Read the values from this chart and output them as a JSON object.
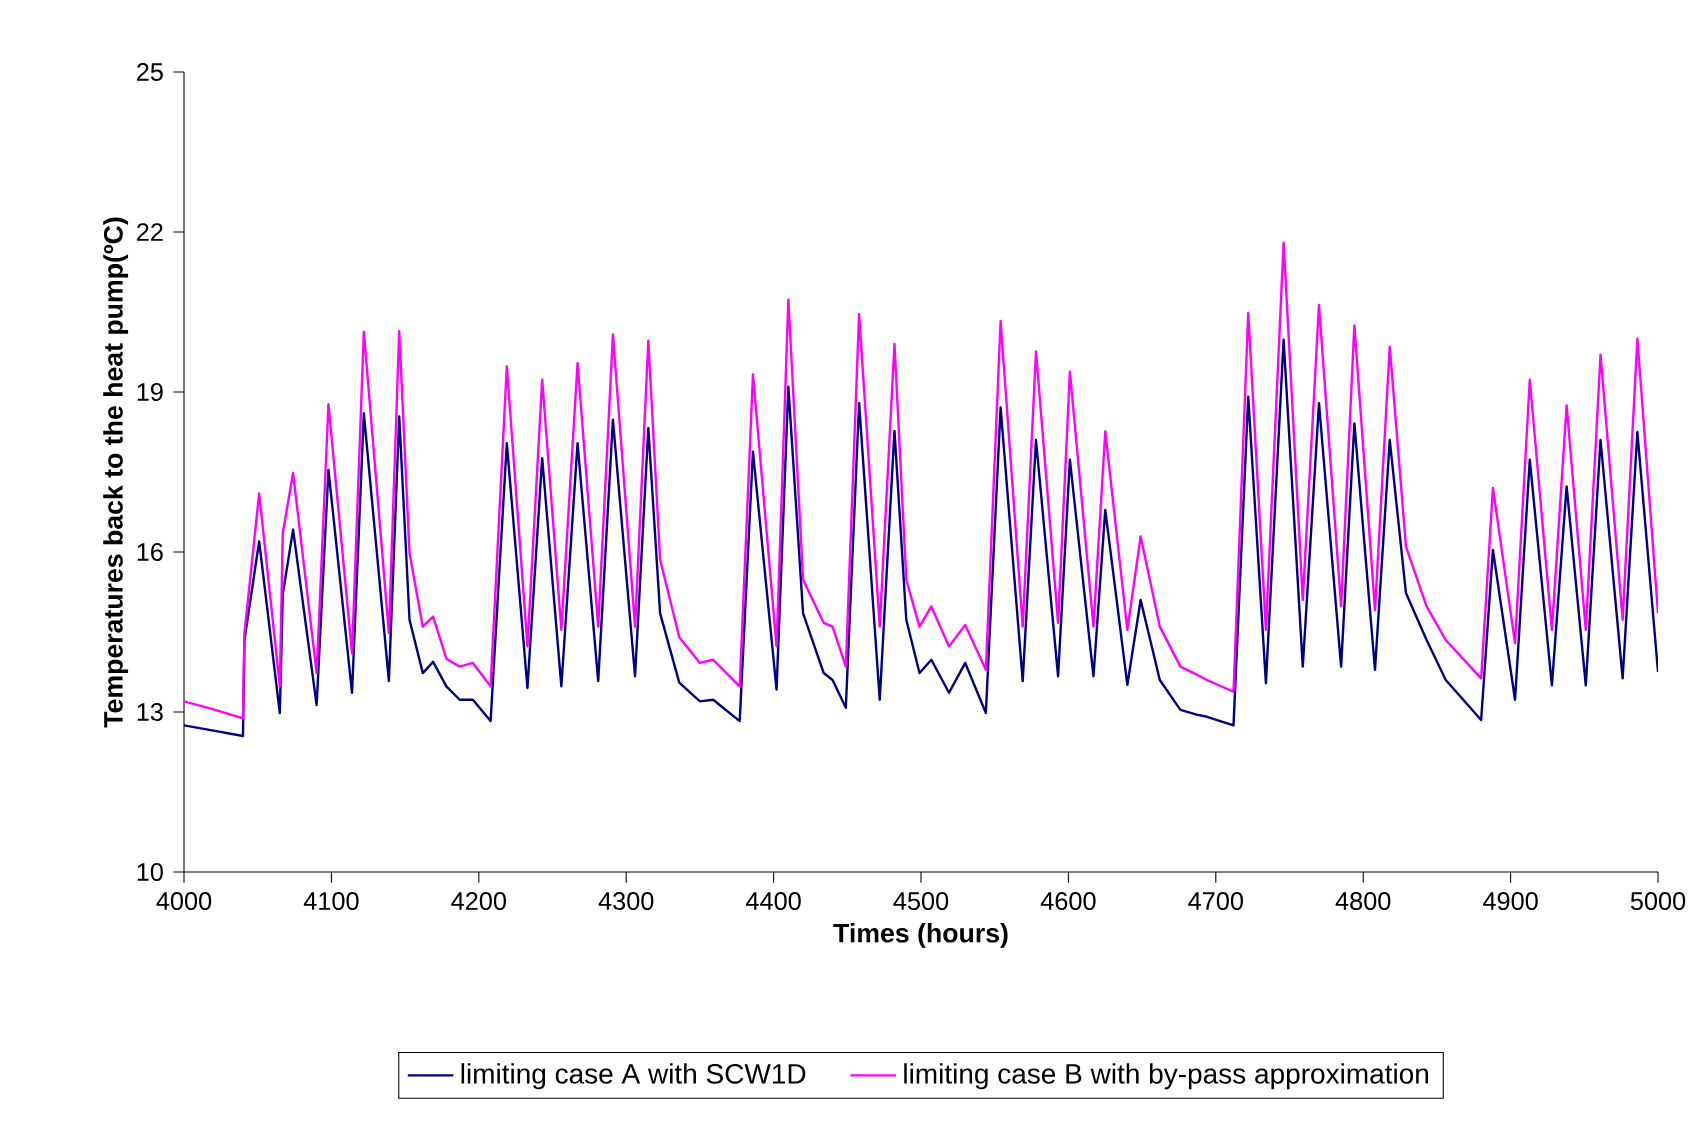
{
  "chart_data": {
    "type": "line",
    "xlabel": "Times (hours)",
    "ylabel": "Temperatures back to the heat pump(ºC)",
    "x": [
      4000,
      4020,
      4040,
      4041,
      4051,
      4065,
      4067,
      4074,
      4090,
      4098,
      4114,
      4122,
      4139,
      4146,
      4153,
      4162,
      4169,
      4178,
      4187,
      4196,
      4208,
      4219,
      4233,
      4243,
      4256,
      4267,
      4281,
      4291,
      4306,
      4315,
      4323,
      4336,
      4350,
      4359,
      4377,
      4386,
      4402,
      4410,
      4420,
      4434,
      4440,
      4449,
      4458,
      4472,
      4482,
      4490,
      4499,
      4507,
      4519,
      4530,
      4544,
      4554,
      4569,
      4578,
      4593,
      4601,
      4617,
      4625,
      4640,
      4649,
      4662,
      4676,
      4687,
      4694,
      4712,
      4722,
      4734,
      4746,
      4759,
      4770,
      4785,
      4794,
      4808,
      4818,
      4829,
      4843,
      4856,
      4880,
      4888,
      4903,
      4913,
      4928,
      4938,
      4951,
      4961,
      4976,
      4986,
      5000
    ],
    "series": [
      {
        "name": "limiting case A with SCW1D",
        "color": "#000080",
        "values": [
          12.75,
          12.65,
          12.55,
          14.35,
          16.2,
          12.98,
          15.2,
          16.42,
          13.13,
          17.54,
          13.36,
          18.6,
          13.58,
          18.54,
          14.73,
          13.73,
          13.94,
          13.48,
          13.23,
          13.23,
          12.83,
          18.04,
          13.45,
          17.76,
          13.48,
          18.04,
          13.58,
          18.48,
          13.67,
          18.32,
          14.85,
          13.55,
          13.2,
          13.23,
          12.83,
          17.88,
          13.42,
          19.1,
          14.85,
          13.73,
          13.6,
          13.08,
          18.79,
          13.23,
          18.27,
          14.73,
          13.73,
          13.98,
          13.36,
          13.92,
          12.98,
          18.71,
          13.58,
          18.1,
          13.67,
          17.73,
          13.67,
          16.79,
          13.51,
          15.1,
          13.6,
          13.04,
          12.95,
          12.91,
          12.75,
          18.91,
          13.54,
          19.98,
          13.85,
          18.79,
          13.85,
          18.41,
          13.79,
          18.1,
          15.23,
          14.35,
          13.6,
          12.85,
          16.04,
          13.23,
          17.73,
          13.5,
          17.23,
          13.5,
          18.1,
          13.63,
          18.25,
          13.75
        ]
      },
      {
        "name": "limiting case B  with by-pass approximation",
        "color": "#ff00ff",
        "values": [
          13.2,
          13.05,
          12.88,
          14.48,
          17.1,
          13.48,
          16.35,
          17.48,
          13.73,
          18.77,
          14.1,
          20.13,
          14.48,
          20.14,
          15.98,
          14.6,
          14.79,
          14.0,
          13.85,
          13.92,
          13.48,
          19.48,
          14.23,
          19.23,
          14.54,
          19.54,
          14.6,
          20.08,
          14.6,
          19.96,
          15.86,
          14.4,
          13.92,
          13.98,
          13.48,
          19.33,
          14.23,
          20.73,
          15.48,
          14.67,
          14.6,
          13.85,
          20.46,
          14.6,
          19.9,
          15.48,
          14.6,
          14.98,
          14.23,
          14.63,
          13.79,
          20.33,
          14.6,
          19.76,
          14.67,
          19.38,
          14.6,
          18.26,
          14.54,
          16.29,
          14.6,
          13.85,
          13.7,
          13.6,
          13.38,
          20.48,
          14.54,
          21.8,
          15.1,
          20.63,
          14.98,
          20.25,
          14.91,
          19.85,
          16.1,
          14.98,
          14.35,
          13.63,
          17.2,
          14.29,
          19.23,
          14.54,
          18.75,
          14.54,
          19.7,
          14.73,
          20.0,
          14.85
        ]
      }
    ],
    "xlim": [
      4000,
      5000
    ],
    "xticks": [
      4000,
      4100,
      4200,
      4300,
      4400,
      4500,
      4600,
      4700,
      4800,
      4900,
      5000
    ],
    "ylim": [
      10,
      25
    ],
    "yticks": [
      10,
      13,
      16,
      19,
      22,
      25
    ],
    "legend": "bottom",
    "line_style": "solid",
    "marker": "none"
  }
}
